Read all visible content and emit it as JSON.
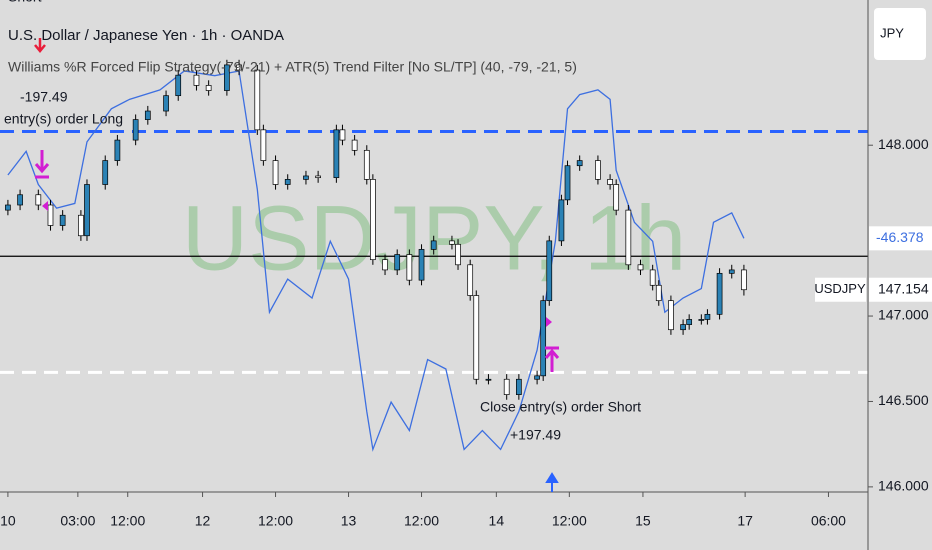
{
  "chart_data": {
    "type": "candlestick",
    "title": "U.S. Dollar / Japanese Yen · 1h · OANDA",
    "subtitle": "Williams %R Forced Flip Strategy(-79/-21) + ATR(5) Trend Filter [No SL/TP] (40, -79, -21, 5)",
    "watermark": "USDJPY, 1h",
    "currency": "JPY",
    "symbol": "USDJPY",
    "last_price": 147.154,
    "up_color": "#2b82b5",
    "down_color": "#ffffff",
    "x": [
      0,
      2,
      5,
      7,
      9,
      12,
      13,
      16,
      18,
      21,
      23,
      26,
      28,
      31,
      33,
      36,
      38,
      41,
      42,
      44,
      46,
      49,
      51,
      54,
      55,
      57,
      59,
      60,
      62,
      64,
      66,
      68,
      70,
      73,
      74,
      76,
      77,
      79,
      82,
      84,
      87,
      88,
      89,
      91,
      92,
      94,
      97,
      99,
      100,
      102,
      104,
      106,
      107,
      109,
      111,
      112,
      114,
      115,
      117,
      119,
      121
    ],
    "open": [
      147.62,
      147.65,
      147.71,
      147.65,
      147.53,
      147.59,
      147.47,
      147.77,
      147.91,
      148.03,
      148.15,
      148.2,
      148.29,
      148.41,
      148.35,
      148.32,
      148.47,
      148.44,
      148.09,
      147.91,
      147.77,
      147.8,
      147.82,
      147.81,
      148.09,
      148.03,
      147.97,
      147.8,
      147.33,
      147.27,
      147.36,
      147.21,
      147.39,
      147.44,
      147.42,
      147.3,
      147.12,
      146.63,
      146.63,
      146.54,
      146.63,
      146.65,
      147.09,
      147.44,
      147.68,
      147.88,
      147.91,
      147.8,
      147.77,
      147.62,
      147.3,
      147.27,
      147.18,
      147.09,
      146.92,
      146.95,
      146.98,
      146.98,
      147.01,
      147.25,
      147.27
    ],
    "high": [
      147.68,
      147.74,
      147.74,
      147.68,
      147.62,
      147.62,
      147.8,
      147.94,
      148.06,
      148.18,
      148.23,
      148.32,
      148.44,
      148.44,
      148.38,
      148.5,
      148.5,
      148.47,
      148.12,
      147.94,
      147.83,
      147.85,
      147.85,
      148.12,
      148.12,
      148.06,
      148.0,
      147.83,
      147.36,
      147.39,
      147.39,
      147.42,
      147.47,
      147.47,
      147.45,
      147.33,
      147.15,
      146.66,
      146.66,
      146.66,
      146.68,
      147.12,
      147.47,
      147.71,
      147.91,
      147.94,
      147.94,
      147.83,
      147.8,
      147.65,
      147.33,
      147.3,
      147.21,
      147.12,
      146.98,
      147.01,
      147.01,
      147.04,
      147.28,
      147.3,
      147.3
    ],
    "low": [
      147.59,
      147.62,
      147.62,
      147.5,
      147.5,
      147.44,
      147.44,
      147.74,
      147.88,
      148.0,
      148.12,
      148.17,
      148.26,
      148.32,
      148.29,
      148.29,
      148.41,
      148.06,
      147.88,
      147.74,
      147.74,
      147.77,
      147.78,
      147.78,
      148.0,
      147.94,
      147.77,
      147.3,
      147.24,
      147.24,
      147.18,
      147.18,
      147.36,
      147.39,
      147.27,
      147.09,
      146.6,
      146.6,
      146.51,
      146.51,
      146.6,
      146.62,
      147.06,
      147.41,
      147.65,
      147.85,
      147.77,
      147.74,
      147.59,
      147.27,
      147.24,
      147.15,
      147.06,
      146.89,
      146.89,
      146.92,
      146.95,
      146.95,
      146.98,
      147.22,
      147.12
    ],
    "close": [
      147.65,
      147.71,
      147.65,
      147.53,
      147.59,
      147.47,
      147.77,
      147.91,
      148.03,
      148.15,
      148.2,
      148.29,
      148.41,
      148.35,
      148.32,
      148.47,
      148.44,
      148.09,
      147.91,
      147.77,
      147.8,
      147.82,
      147.81,
      148.09,
      148.03,
      147.97,
      147.8,
      147.33,
      147.27,
      147.36,
      147.21,
      147.39,
      147.44,
      147.42,
      147.3,
      147.12,
      146.63,
      146.63,
      146.54,
      146.63,
      146.65,
      147.09,
      147.44,
      147.68,
      147.88,
      147.91,
      147.8,
      147.77,
      147.62,
      147.3,
      147.27,
      147.18,
      147.09,
      146.92,
      146.95,
      146.98,
      146.98,
      147.01,
      147.25,
      147.27,
      147.154
    ],
    "overlay": {
      "color": "#3d6fe0",
      "axis": "y2",
      "x": [
        0,
        3,
        5,
        8,
        11,
        13,
        17,
        20,
        25,
        29,
        34,
        38,
        41,
        43,
        46,
        50,
        53,
        56,
        59,
        60,
        63,
        66,
        69,
        72,
        75,
        78,
        81,
        84,
        87,
        90,
        92,
        94,
        97,
        99,
        100,
        103,
        106,
        108,
        111,
        114,
        116,
        119,
        121
      ],
      "values": [
        -33,
        -28,
        -35,
        -40,
        -39,
        -26,
        -19,
        -17,
        -15,
        -11,
        -12,
        -11,
        -36,
        -62,
        -55,
        -59,
        -47,
        -55,
        -83,
        -91,
        -81,
        -87,
        -72,
        -74,
        -91,
        -87,
        -91,
        -83,
        -70,
        -47,
        -19,
        -16,
        -15,
        -17,
        -32,
        -43,
        -47,
        -62,
        -59,
        -57,
        -43,
        -41,
        -46.378
      ]
    },
    "levels": [
      {
        "value": 148.08,
        "color": "#2962ff",
        "dashed": true
      },
      {
        "value": 147.35,
        "color": "#000000",
        "dashed": false
      },
      {
        "value": 146.67,
        "color": "#ffffff",
        "dashed": true
      }
    ],
    "annotations": [
      "Short",
      -197.49,
      "entry(s) order Long",
      "Close entry(s) order Short",
      197.49
    ],
    "annotation_labels": [
      "Short",
      "-197.49",
      "entry(s) order Long",
      "Close entry(s) order Short",
      "+197.49"
    ],
    "xlim": [
      -1.3,
      141.4
    ],
    "xticks": [
      {
        "value": 0,
        "label": "10"
      },
      {
        "value": 11.5,
        "label": "03:00"
      },
      {
        "value": 19.7,
        "label": "12:00"
      },
      {
        "value": 32,
        "label": "12"
      },
      {
        "value": 44,
        "label": "12:00"
      },
      {
        "value": 56,
        "label": "13"
      },
      {
        "value": 68,
        "label": "12:00"
      },
      {
        "value": 80.3,
        "label": "14"
      },
      {
        "value": 92.3,
        "label": "12:00"
      },
      {
        "value": 104.4,
        "label": "15"
      },
      {
        "value": 121.2,
        "label": "17"
      },
      {
        "value": 134.9,
        "label": "06:00"
      }
    ],
    "ylim": [
      145.97,
      148.85
    ],
    "yticks": [
      {
        "value": 148,
        "label": "148.000"
      },
      {
        "value": 147,
        "label": "147.000"
      },
      {
        "value": 146.5,
        "label": "146.500"
      },
      {
        "value": 146,
        "label": "146.000"
      }
    ],
    "y2lim": [
      -100,
      4
    ]
  }
}
